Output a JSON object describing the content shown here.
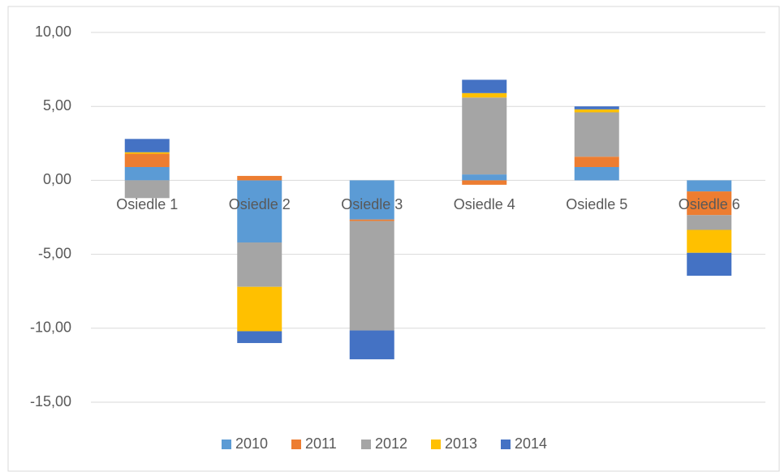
{
  "chart_data": {
    "type": "bar",
    "stacked": true,
    "categories": [
      "Osiedle 1",
      "Osiedle 2",
      "Osiedle 3",
      "Osiedle 4",
      "Osiedle 5",
      "Osiedle 6"
    ],
    "series": [
      {
        "name": "2010",
        "color": "#5b9bd5",
        "values": [
          0.9,
          -4.2,
          -2.65,
          0.4,
          0.9,
          -0.75
        ]
      },
      {
        "name": "2011",
        "color": "#ed7d31",
        "values": [
          0.9,
          0.3,
          -0.1,
          -0.3,
          0.7,
          -1.6
        ]
      },
      {
        "name": "2012",
        "color": "#a5a5a5",
        "values": [
          -1.2,
          -3.0,
          -7.4,
          5.2,
          3.0,
          -1.0
        ]
      },
      {
        "name": "2013",
        "color": "#ffc000",
        "values": [
          0.1,
          -3.0,
          0,
          0.3,
          0.2,
          -1.55
        ]
      },
      {
        "name": "2014",
        "color": "#4472c4",
        "values": [
          0.9,
          -0.8,
          -1.95,
          0.9,
          0.2,
          -1.55
        ]
      }
    ],
    "ylim": [
      -15,
      10
    ],
    "yticks": [
      {
        "value": -15,
        "label": "-15,00"
      },
      {
        "value": -10,
        "label": "-10,00"
      },
      {
        "value": -5,
        "label": "-5,00"
      },
      {
        "value": 0,
        "label": "0,00"
      },
      {
        "value": 5,
        "label": "5,00"
      },
      {
        "value": 10,
        "label": "10,00"
      }
    ],
    "grid": true,
    "legend": "bottom"
  }
}
